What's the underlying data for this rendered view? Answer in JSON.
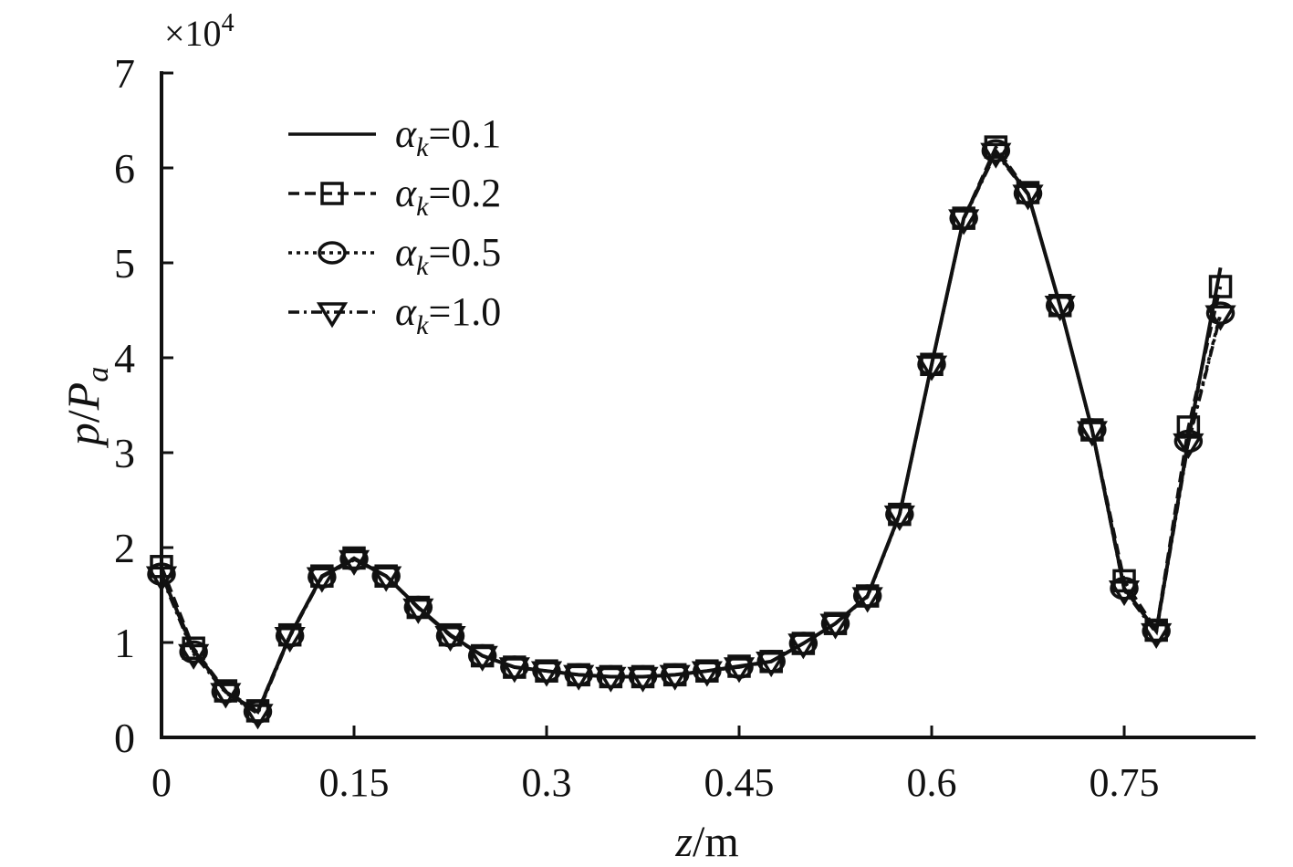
{
  "chart_data": {
    "type": "line",
    "title": "",
    "xlabel": {
      "var": "z",
      "unit": "/m"
    },
    "ylabel": {
      "var": "p",
      "slash": "/",
      "sym": "P",
      "sub": "a"
    },
    "y_multiplier": {
      "prefix": "×10",
      "exp": "4"
    },
    "xlim": [
      0,
      0.85
    ],
    "ylim": [
      0,
      7
    ],
    "x_ticks": [
      0,
      0.15,
      0.3,
      0.45,
      0.6,
      0.75
    ],
    "x_tick_labels": [
      "0",
      "0.15",
      "0.3",
      "0.45",
      "0.6",
      "0.75"
    ],
    "y_ticks": [
      0,
      1,
      2,
      3,
      4,
      5,
      6,
      7
    ],
    "y_tick_labels": [
      "0",
      "1",
      "2",
      "3",
      "4",
      "5",
      "6",
      "7"
    ],
    "grid": false,
    "legend_position": "top-left",
    "x": [
      0,
      0.025,
      0.05,
      0.075,
      0.1,
      0.125,
      0.15,
      0.175,
      0.2,
      0.225,
      0.25,
      0.275,
      0.3,
      0.325,
      0.35,
      0.375,
      0.4,
      0.425,
      0.45,
      0.475,
      0.5,
      0.525,
      0.55,
      0.575,
      0.6,
      0.625,
      0.65,
      0.675,
      0.7,
      0.725,
      0.75,
      0.775,
      0.8,
      0.825
    ],
    "series": [
      {
        "name": "α_k=0.1",
        "sym": "α",
        "sub": "k",
        "val": "=0.1",
        "style": "solid",
        "marker": "none",
        "values": [
          1.72,
          0.92,
          0.48,
          0.27,
          1.07,
          1.7,
          1.88,
          1.7,
          1.37,
          1.08,
          0.86,
          0.74,
          0.7,
          0.66,
          0.64,
          0.64,
          0.66,
          0.7,
          0.75,
          0.8,
          0.99,
          1.2,
          1.49,
          2.35,
          3.93,
          5.47,
          6.18,
          5.73,
          4.55,
          3.24,
          1.57,
          1.12,
          3.14,
          4.95
        ]
      },
      {
        "name": "α_k=0.2",
        "sym": "α",
        "sub": "k",
        "val": "=0.2",
        "style": "dashed",
        "marker": "square",
        "values": [
          1.8,
          0.94,
          0.49,
          0.28,
          1.08,
          1.7,
          1.89,
          1.7,
          1.37,
          1.08,
          0.86,
          0.74,
          0.7,
          0.66,
          0.64,
          0.64,
          0.66,
          0.7,
          0.75,
          0.8,
          0.99,
          1.2,
          1.49,
          2.35,
          3.93,
          5.47,
          6.22,
          5.74,
          4.55,
          3.24,
          1.65,
          1.13,
          3.27,
          4.75
        ]
      },
      {
        "name": "α_k=0.5",
        "sym": "α",
        "sub": "k",
        "val": "=0.5",
        "style": "dotted",
        "marker": "circle",
        "values": [
          1.72,
          0.9,
          0.48,
          0.27,
          1.07,
          1.69,
          1.88,
          1.7,
          1.37,
          1.07,
          0.86,
          0.74,
          0.7,
          0.66,
          0.64,
          0.64,
          0.66,
          0.7,
          0.74,
          0.8,
          0.99,
          1.2,
          1.49,
          2.35,
          3.93,
          5.47,
          6.18,
          5.73,
          4.55,
          3.24,
          1.57,
          1.12,
          3.12,
          4.47
        ]
      },
      {
        "name": "α_k=1.0",
        "sym": "α",
        "sub": "k",
        "val": "=1.0",
        "style": "dashdot",
        "marker": "triangle-down",
        "values": [
          1.7,
          0.88,
          0.47,
          0.25,
          1.06,
          1.69,
          1.87,
          1.7,
          1.36,
          1.07,
          0.86,
          0.74,
          0.7,
          0.66,
          0.64,
          0.64,
          0.66,
          0.7,
          0.74,
          0.8,
          0.99,
          1.2,
          1.48,
          2.34,
          3.92,
          5.46,
          6.16,
          5.72,
          4.55,
          3.23,
          1.55,
          1.1,
          3.1,
          4.45
        ]
      }
    ]
  }
}
